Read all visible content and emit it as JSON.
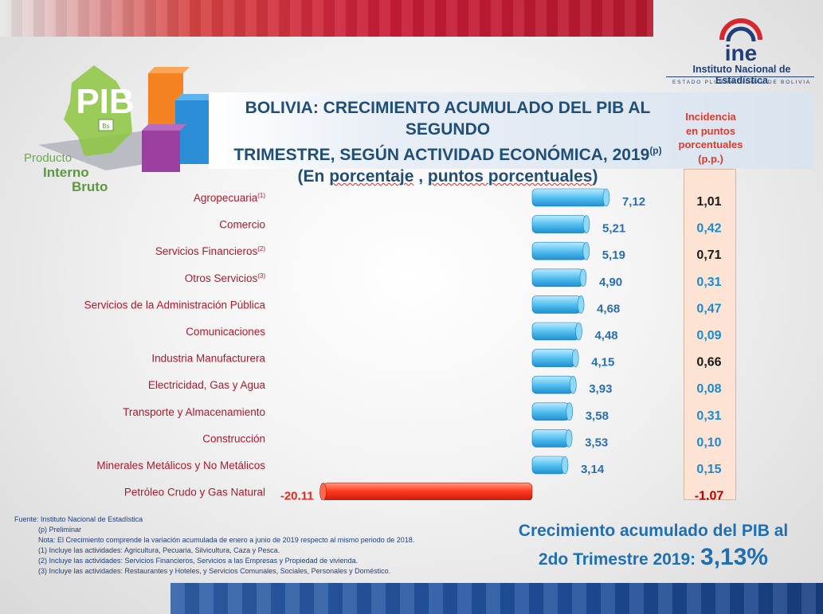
{
  "header": {
    "title_line1": "BOLIVIA:  CRECIMIENTO ACUMULADO DEL PIB AL SEGUNDO",
    "title_line2": "TRIMESTRE, SEGÚN ACTIVIDAD ECONÓMICA, 2019",
    "title_sup": "(p)",
    "subtitle_open": "(En ",
    "subtitle_w1": "porcentaje",
    "subtitle_mid": " , ",
    "subtitle_w2": "puntos porcentuales",
    "subtitle_close": ")"
  },
  "logo": {
    "acronym": "ine",
    "name": "Instituto Nacional de Estadística",
    "subname": "ESTADO PLURINACIONAL DE BOLIVIA"
  },
  "pib_logo": {
    "text": "PIB",
    "badge": "Bs",
    "caption1": "Producto",
    "caption2": "Interno",
    "caption3": "Bruto"
  },
  "incidence_header": [
    "Incidencia",
    "en puntos",
    "porcentuales",
    "(p.p.)"
  ],
  "chart_data": {
    "type": "bar",
    "orientation": "horizontal",
    "categories": [
      {
        "label": "Agropecuaria",
        "sup": "(1)"
      },
      {
        "label": "Comercio",
        "sup": ""
      },
      {
        "label": "Servicios Financieros",
        "sup": "(2)"
      },
      {
        "label": "Otros Servicios",
        "sup": "(3)"
      },
      {
        "label": "Servicios de la Administración Pública",
        "sup": ""
      },
      {
        "label": "Comunicaciones",
        "sup": ""
      },
      {
        "label": "Industria Manufacturera",
        "sup": ""
      },
      {
        "label": "Electricidad, Gas y Agua",
        "sup": ""
      },
      {
        "label": "Transporte y Almacenamiento",
        "sup": ""
      },
      {
        "label": "Construcción",
        "sup": ""
      },
      {
        "label": "Minerales Metálicos y No Metálicos",
        "sup": ""
      },
      {
        "label": "Petróleo Crudo y Gas Natural",
        "sup": ""
      }
    ],
    "values": [
      7.12,
      5.21,
      5.19,
      4.9,
      4.68,
      4.48,
      4.15,
      3.93,
      3.58,
      3.53,
      3.14,
      -20.11
    ],
    "value_labels": [
      "7,12",
      "5,21",
      "5,19",
      "4,90",
      "4,68",
      "4,48",
      "4,15",
      "3,93",
      "3,58",
      "3,53",
      "3,14",
      "-20,11"
    ],
    "incidence": [
      1.01,
      0.42,
      0.71,
      0.31,
      0.47,
      0.09,
      0.66,
      0.08,
      0.31,
      0.1,
      0.15,
      -1.07
    ],
    "incidence_labels": [
      "1,01",
      "0,42",
      "0,71",
      "0,31",
      "0,47",
      "0,09",
      "0,66",
      "0,08",
      "0,31",
      "0,10",
      "0,15",
      "-1,07"
    ],
    "colors": {
      "positive_bar": "#5ec5f2",
      "negative_bar": "#ff3b1f",
      "value_label": "#2a6fb6",
      "incidence_dark": "#1a1a1a",
      "incidence_blue": "#1a8bd0",
      "incidence_negative": "#c00000"
    },
    "incidence_dark_rows": [
      0,
      2,
      6
    ],
    "xlim": [
      -20.11,
      7.12
    ]
  },
  "footnotes": {
    "source": "Fuente: Instituto Nacional de Estadística",
    "p": "(p) Preliminar",
    "note": "Nota: El Crecimiento comprende la variación acumulada  de enero a junio de 2019 respecto al mismo periodo de 2018.",
    "n1": "(1) Incluye las actividades: Agricultura, Pecuaria, Silvicultura, Caza y Pesca.",
    "n2": "(2) Incluye las actividades: Servicios Financieros, Servicios a las Empresas y Propiedad de vivienda.",
    "n3": "(3) Incluye las actividades: Restaurantes y Hoteles, y Servicios Comunales, Sociales, Personales y  Doméstico."
  },
  "summary": {
    "line1": "Crecimiento acumulado del PIB al",
    "line2": "2do Trimestre 2019:",
    "value": "3,13%"
  }
}
